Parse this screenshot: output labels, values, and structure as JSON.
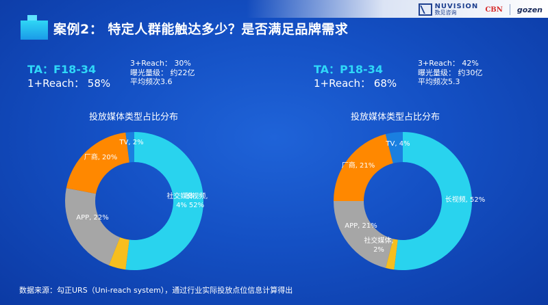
{
  "title": "案例2： 特定人群能触达多少？是否满足品牌需求",
  "brand": {
    "nuvision_en": "NUVISION",
    "nuvision_cn": "数见咨询",
    "cbn": "CBN",
    "gozen": "gozen"
  },
  "source": "数据来源：勾正URS（Uni-reach system），通过行业实际投放点位信息计算得出",
  "panels": [
    {
      "ta": "TA：F18-34",
      "reach": "1+Reach： 58%",
      "stats": [
        "3+Reach： 30%",
        "曝光量级： 约22亿",
        "平均频次3.6"
      ]
    },
    {
      "ta": "TA：P18-34",
      "reach": "1+Reach： 68%",
      "stats": [
        "3+Reach： 42%",
        "曝光量级： 约30亿",
        "平均频次5.3"
      ]
    }
  ],
  "chart_data": [
    {
      "type": "pie",
      "donut": true,
      "title": "投放媒体类型占比分布",
      "categories": [
        "长视频",
        "社交媒体",
        "APP",
        "厂商",
        "TV"
      ],
      "values": [
        52,
        4,
        22,
        20,
        2
      ],
      "unit": "%",
      "data_labels": [
        "长视频,\n52%",
        "社交媒体,\n4%",
        "APP, 22%",
        "厂商, 20%",
        "TV, 2%"
      ],
      "colors": [
        "#29d3ee",
        "#f7be1e",
        "#a6a6a6",
        "#ff8800",
        "#1a7fe0"
      ]
    },
    {
      "type": "pie",
      "donut": true,
      "title": "投放媒体类型占比分布",
      "categories": [
        "长视频",
        "社交媒体",
        "APP",
        "厂商",
        "TV"
      ],
      "values": [
        52,
        2,
        21,
        21,
        4
      ],
      "unit": "%",
      "data_labels": [
        "长视频, 52%",
        "社交媒体,\n2%",
        "APP, 21%",
        "厂商, 21%",
        "TV, 4%"
      ],
      "colors": [
        "#29d3ee",
        "#f7be1e",
        "#a6a6a6",
        "#ff8800",
        "#1a7fe0"
      ]
    }
  ]
}
